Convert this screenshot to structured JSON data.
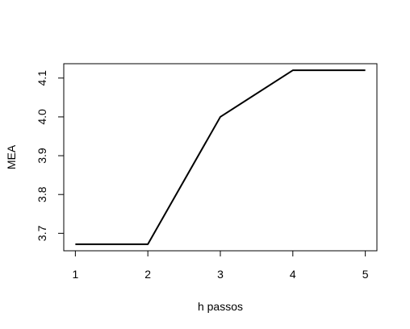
{
  "chart_data": {
    "type": "line",
    "title": "",
    "xlabel": "h passos",
    "ylabel": "MEA",
    "x": [
      1,
      2,
      3,
      4,
      5
    ],
    "series": [
      {
        "values": [
          3.672,
          3.672,
          4.0,
          4.12,
          4.12
        ],
        "color": "#000000"
      }
    ],
    "xlim": [
      0.84,
      5.16
    ],
    "ylim": [
      3.655,
      4.137
    ],
    "xticks": [
      1,
      2,
      3,
      4,
      5
    ],
    "yticks": [
      3.7,
      3.8,
      3.9,
      4.0,
      4.1
    ],
    "xtick_labels": [
      "1",
      "2",
      "3",
      "4",
      "5"
    ],
    "ytick_labels": [
      "3.7",
      "3.8",
      "3.9",
      "4.0",
      "4.1"
    ],
    "grid": false,
    "legend": "none"
  }
}
